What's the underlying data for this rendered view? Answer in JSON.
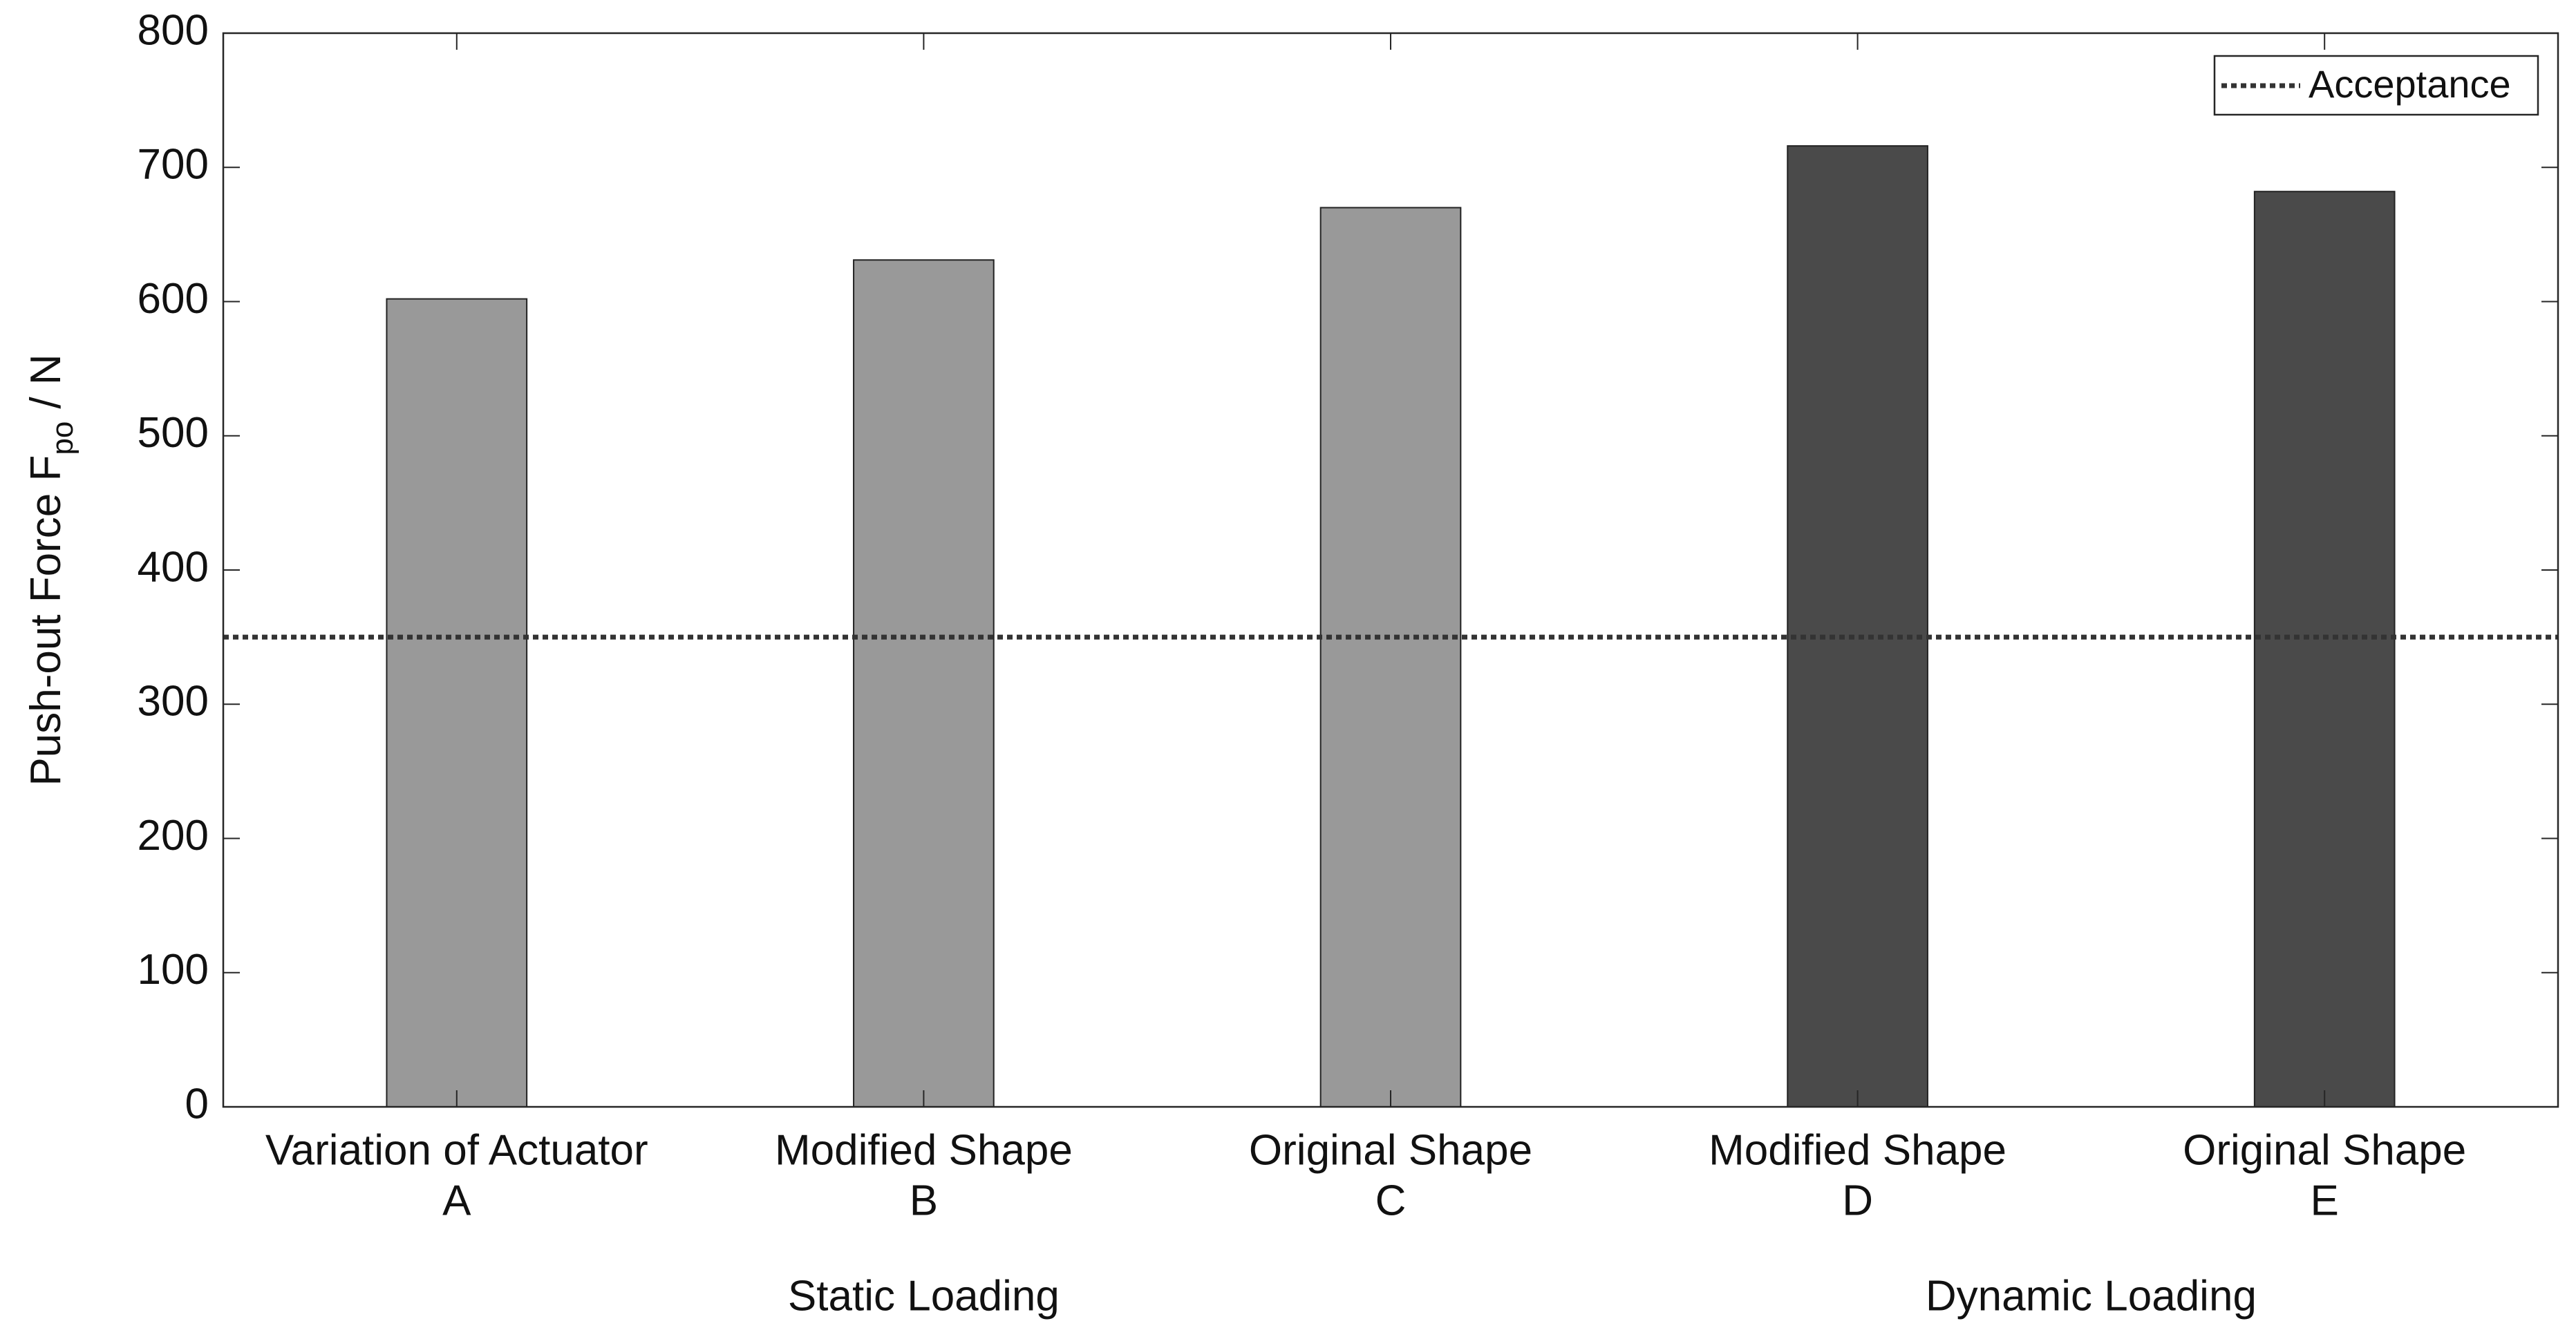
{
  "chart_data": {
    "type": "bar",
    "y_label": {
      "main": "Push-out Force F",
      "sub": "po",
      "unit": "/ N"
    },
    "categories": [
      "Variation of Actuator",
      "Modified Shape",
      "Original Shape",
      "Modified Shape",
      "Original Shape"
    ],
    "category_codes": [
      "A",
      "B",
      "C",
      "D",
      "E"
    ],
    "groups": [
      "Static Loading",
      "Dynamic Loading"
    ],
    "values": [
      602,
      631,
      670,
      716,
      682
    ],
    "colors": [
      "#999999",
      "#999999",
      "#999999",
      "#4a4a4a",
      "#4a4a4a"
    ],
    "reference_line": {
      "name": "Acceptance",
      "value": 350,
      "color": "#333333",
      "style": "dotted"
    },
    "ylim": [
      0,
      800
    ],
    "yticks": [
      0,
      100,
      200,
      300,
      400,
      500,
      600,
      700,
      800
    ],
    "grid": false,
    "legend": "upper right"
  }
}
